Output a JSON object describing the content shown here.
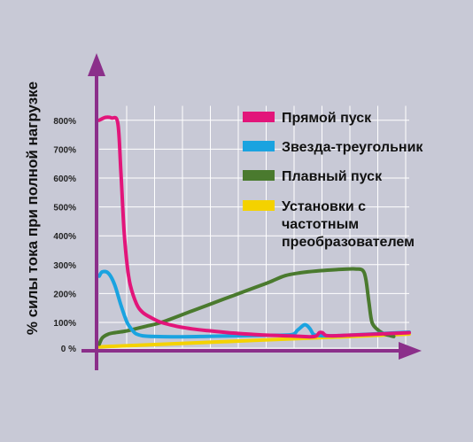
{
  "chart_data": {
    "type": "line",
    "ylabel": "% силы тока при полной нагрузке",
    "xlabel": "",
    "title": "",
    "ylim": [
      0,
      850
    ],
    "xlim": [
      0,
      100
    ],
    "y_ticks": [
      "0 %",
      "100%",
      "200%",
      "300%",
      "400%",
      "500%",
      "600%",
      "700%",
      "800%"
    ],
    "grid": true,
    "legend_position": "top-right",
    "colors": {
      "background": "#c8c9d6",
      "grid": "#ffffff",
      "axis": "#8b2f8a"
    },
    "series": [
      {
        "name": "Прямой пуск",
        "color": "#e2157a",
        "x": [
          0,
          2,
          4,
          6,
          7,
          8,
          9,
          10,
          12,
          14,
          17,
          20,
          25,
          30,
          35,
          40,
          45,
          50,
          55,
          60,
          65,
          68,
          70,
          71,
          72,
          73,
          75,
          80,
          90,
          100
        ],
        "y": [
          800,
          810,
          808,
          790,
          620,
          420,
          300,
          230,
          165,
          135,
          115,
          100,
          85,
          75,
          68,
          62,
          57,
          53,
          50,
          48,
          46,
          44,
          47,
          60,
          60,
          50,
          48,
          50,
          55,
          60
        ]
      },
      {
        "name": "Звезда-треугольник",
        "color": "#1aa3e0",
        "x": [
          0,
          1,
          3,
          5,
          7,
          9,
          11,
          12,
          14,
          18,
          25,
          35,
          45,
          55,
          62,
          64,
          66,
          67,
          68,
          69,
          70,
          72,
          76,
          80,
          90,
          100
        ],
        "y": [
          260,
          275,
          270,
          230,
          160,
          100,
          65,
          55,
          48,
          45,
          44,
          46,
          48,
          50,
          52,
          70,
          90,
          88,
          75,
          55,
          50,
          48,
          48,
          50,
          56,
          62
        ]
      },
      {
        "name": "Плавный пуск",
        "color": "#4a7a2e",
        "x": [
          0,
          1,
          3,
          5,
          8,
          10,
          15,
          20,
          30,
          40,
          50,
          55,
          60,
          65,
          70,
          75,
          80,
          83,
          85,
          86,
          87,
          88,
          90,
          92,
          94,
          95
        ],
        "y": [
          15,
          40,
          55,
          60,
          65,
          70,
          85,
          100,
          140,
          180,
          220,
          240,
          262,
          272,
          278,
          282,
          285,
          285,
          280,
          250,
          170,
          100,
          70,
          55,
          48,
          45
        ]
      },
      {
        "name": "Установки с частотным преобразователем",
        "color": "#f4d200",
        "x": [
          0,
          100
        ],
        "y": [
          5,
          55
        ]
      }
    ]
  },
  "legend": [
    {
      "lines": [
        "Прямой пуск"
      ],
      "color": "#e2157a"
    },
    {
      "lines": [
        "Звезда-треугольник"
      ],
      "color": "#1aa3e0"
    },
    {
      "lines": [
        "Плавный пуск"
      ],
      "color": "#4a7a2e"
    },
    {
      "lines": [
        "Установки с",
        "частотным",
        "преобразователем"
      ],
      "color": "#f4d200"
    }
  ]
}
